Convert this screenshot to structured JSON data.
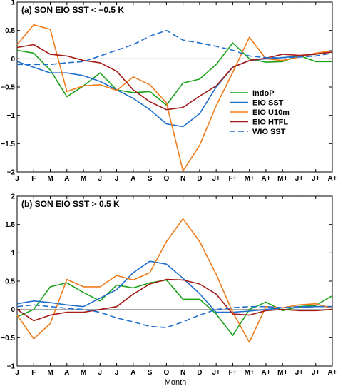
{
  "figure": {
    "xlabel": "Month"
  },
  "chart_data": [
    {
      "type": "line",
      "title": "(a) SON EIO SST < −0.5 K",
      "categories": [
        "J",
        "F",
        "M",
        "A",
        "M",
        "J",
        "J",
        "A",
        "S",
        "O",
        "N",
        "D",
        "J+",
        "F+",
        "M+",
        "A+",
        "M+",
        "J+",
        "J+",
        "A+"
      ],
      "ylim": [
        -2,
        1
      ],
      "yticks": [
        {
          "value": 1,
          "label": "1"
        },
        {
          "value": 0.5,
          "label": "0.5"
        },
        {
          "value": 0,
          "label": "0"
        },
        {
          "value": -0.5,
          "label": "−0.5"
        },
        {
          "value": -1,
          "label": "−1"
        },
        {
          "value": -1.5,
          "label": "−1.5"
        },
        {
          "value": -2,
          "label": "−2"
        }
      ],
      "zero_line": true,
      "legend_position": "right",
      "series": [
        {
          "name": "IndoP",
          "color": "#19a319",
          "dash": "solid",
          "values": [
            0.15,
            0.1,
            -0.2,
            -0.67,
            -0.48,
            -0.25,
            -0.55,
            -0.6,
            -0.58,
            -0.82,
            -0.43,
            -0.36,
            -0.1,
            0.28,
            0.0,
            -0.06,
            -0.05,
            0.06,
            -0.05,
            -0.05
          ]
        },
        {
          "name": "EIO SST",
          "color": "#1f6fcc",
          "dash": "solid",
          "values": [
            -0.05,
            -0.15,
            -0.25,
            -0.25,
            -0.3,
            -0.4,
            -0.55,
            -0.7,
            -0.9,
            -1.15,
            -1.2,
            -0.97,
            -0.5,
            -0.15,
            -0.03,
            0.0,
            0.02,
            0.05,
            0.08,
            0.15
          ]
        },
        {
          "name": "EIO U10m",
          "color": "#f07b1a",
          "dash": "solid",
          "values": [
            0.25,
            0.6,
            0.52,
            -0.58,
            -0.48,
            -0.46,
            -0.56,
            -0.32,
            -0.46,
            -0.78,
            -1.98,
            -1.53,
            -0.83,
            -0.24,
            0.38,
            0.0,
            -0.03,
            0.03,
            0.1,
            0.14
          ]
        },
        {
          "name": "EIO HTFL",
          "color": "#a51c16",
          "dash": "solid",
          "values": [
            0.2,
            0.25,
            0.08,
            0.05,
            -0.03,
            -0.07,
            -0.22,
            -0.55,
            -0.76,
            -0.9,
            -0.86,
            -0.66,
            -0.48,
            -0.15,
            -0.03,
            0.01,
            0.08,
            0.06,
            0.08,
            0.12
          ]
        },
        {
          "name": "WIO SST",
          "color": "#1f6fcc",
          "dash": "dashed",
          "values": [
            -0.1,
            -0.1,
            -0.1,
            -0.07,
            -0.05,
            0.05,
            0.15,
            0.25,
            0.4,
            0.5,
            0.33,
            0.28,
            0.22,
            0.15,
            0.05,
            0.02,
            0.02,
            0.03,
            0.05,
            0.1
          ]
        }
      ]
    },
    {
      "type": "line",
      "title": "(b) SON EIO SST > 0.5 K",
      "categories": [
        "J",
        "F",
        "M",
        "A",
        "M",
        "J",
        "J",
        "A",
        "S",
        "O",
        "N",
        "D",
        "J+",
        "F+",
        "M+",
        "A+",
        "M+",
        "J+",
        "J+",
        "A+"
      ],
      "ylim": [
        -1,
        2
      ],
      "yticks": [
        {
          "value": 2,
          "label": "2"
        },
        {
          "value": 1.5,
          "label": "1.5"
        },
        {
          "value": 1,
          "label": "1"
        },
        {
          "value": 0.5,
          "label": "0.5"
        },
        {
          "value": 0,
          "label": "0"
        },
        {
          "value": -0.5,
          "label": "−0.5"
        },
        {
          "value": -1,
          "label": "−1"
        }
      ],
      "zero_line": true,
      "series": [
        {
          "name": "IndoP",
          "color": "#19a319",
          "dash": "solid",
          "values": [
            -0.13,
            0.0,
            0.4,
            0.47,
            0.3,
            0.15,
            0.43,
            0.38,
            0.47,
            0.52,
            0.18,
            0.18,
            -0.08,
            -0.46,
            0.0,
            0.13,
            -0.02,
            0.05,
            0.07,
            0.24
          ]
        },
        {
          "name": "EIO SST",
          "color": "#1f6fcc",
          "dash": "solid",
          "values": [
            0.1,
            0.15,
            0.12,
            0.08,
            0.05,
            0.2,
            0.35,
            0.65,
            0.85,
            0.8,
            0.55,
            0.28,
            -0.05,
            -0.05,
            -0.03,
            0.0,
            0.03,
            0.03,
            0.05,
            0.05
          ]
        },
        {
          "name": "EIO U10m",
          "color": "#f07b1a",
          "dash": "solid",
          "values": [
            -0.1,
            -0.52,
            -0.25,
            0.53,
            0.4,
            0.4,
            0.6,
            0.52,
            0.65,
            1.2,
            1.6,
            1.2,
            0.62,
            -0.05,
            -0.58,
            0.05,
            0.03,
            0.08,
            0.1,
            0.02
          ]
        },
        {
          "name": "EIO HTFL",
          "color": "#a51c16",
          "dash": "solid",
          "values": [
            0.0,
            -0.2,
            -0.1,
            -0.05,
            -0.05,
            0.0,
            0.05,
            0.27,
            0.45,
            0.53,
            0.52,
            0.45,
            0.27,
            -0.08,
            -0.1,
            -0.02,
            0.0,
            -0.02,
            -0.02,
            0.0
          ]
        },
        {
          "name": "WIO SST",
          "color": "#1f6fcc",
          "dash": "dashed",
          "values": [
            0.05,
            0.08,
            0.05,
            0.02,
            0.0,
            -0.05,
            -0.15,
            -0.22,
            -0.3,
            -0.32,
            -0.22,
            -0.1,
            0.0,
            0.03,
            0.05,
            0.05,
            0.03,
            0.05,
            0.05,
            0.05
          ]
        }
      ]
    }
  ]
}
